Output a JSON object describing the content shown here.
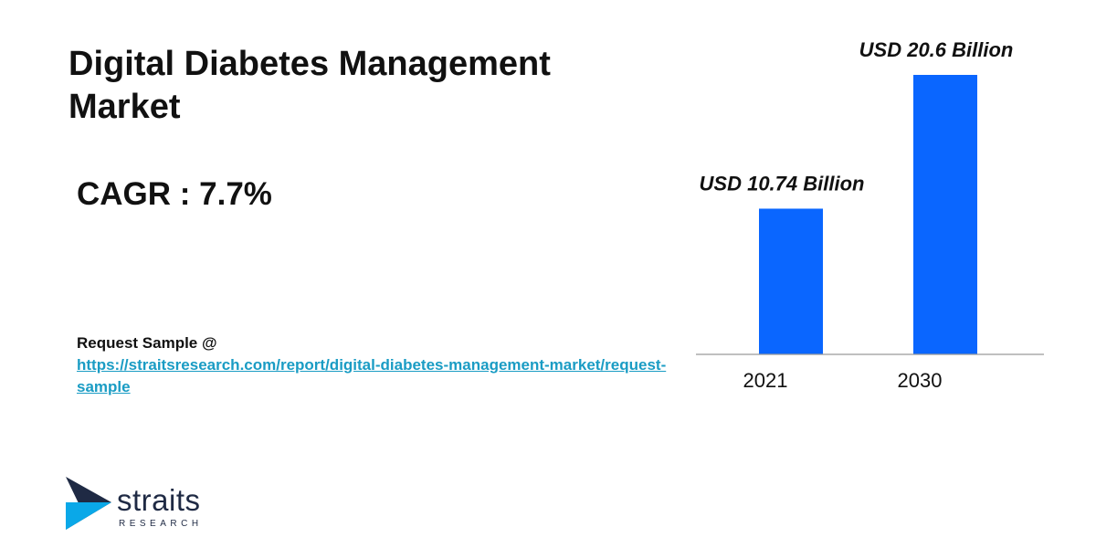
{
  "report": {
    "title": "Digital Diabetes Management Market",
    "cagr": "CAGR : 7.7%",
    "request_label": "Request Sample @",
    "request_url": "https://straitsresearch.com/report/digital-diabetes-management-market/request-sample"
  },
  "logo": {
    "word": "straits",
    "sub": "RESEARCH",
    "icon": "straits-arrow-logo-icon"
  },
  "colors": {
    "bar": "#0a66ff",
    "link": "#1a9cc4",
    "logo_dark": "#1f2a44"
  },
  "chart_data": {
    "type": "bar",
    "categories": [
      "2021",
      "2030"
    ],
    "values": [
      10.74,
      20.6
    ],
    "data_labels": [
      "USD 10.74 Billion",
      "USD 20.6 Billion"
    ],
    "title": "",
    "xlabel": "",
    "ylabel": "",
    "ylim": [
      0,
      20.6
    ],
    "grid": false,
    "legend": "none"
  }
}
